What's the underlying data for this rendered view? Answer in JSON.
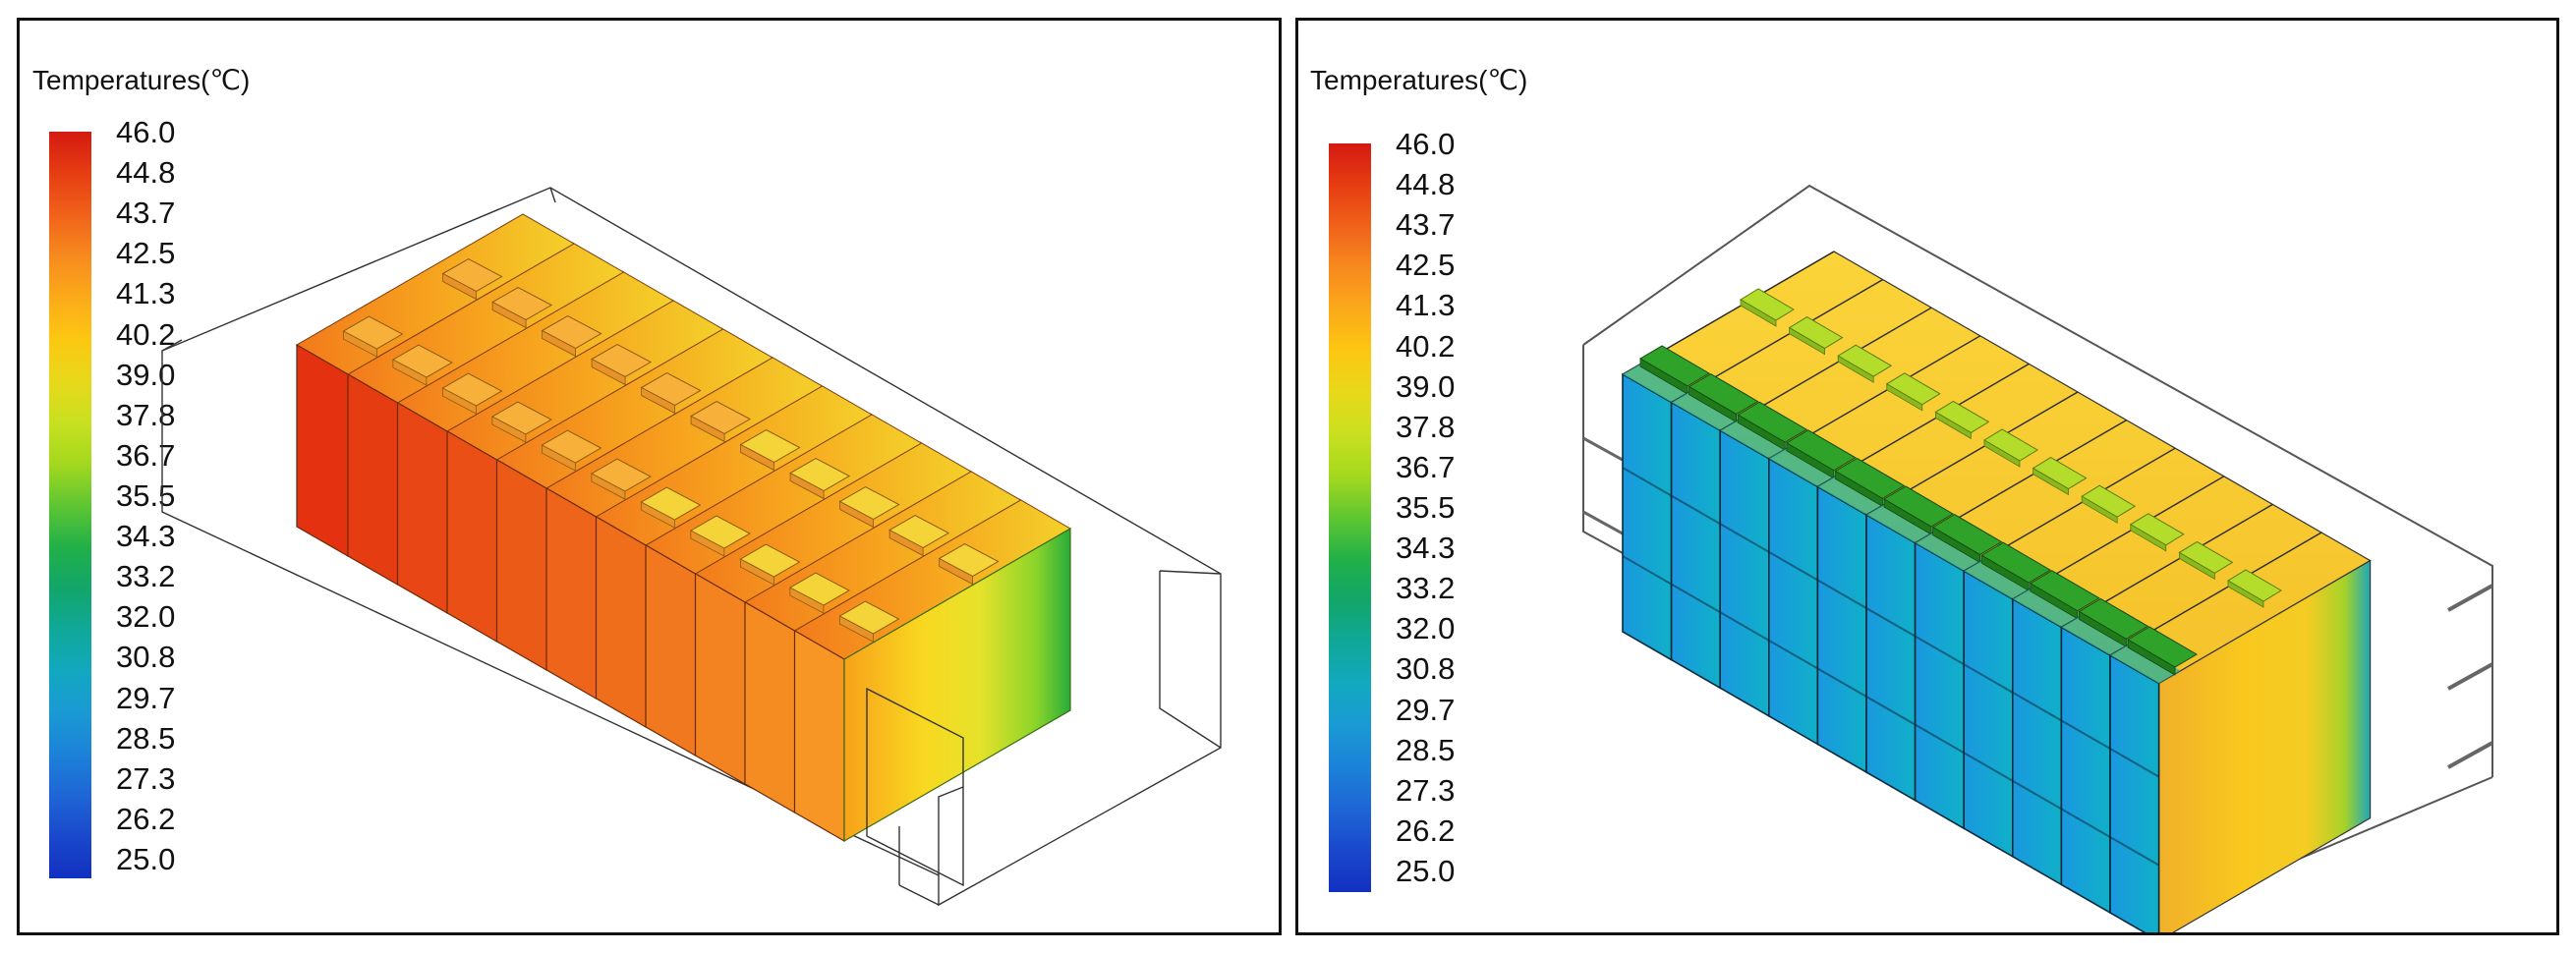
{
  "legend": {
    "title": "Temperatures(℃)",
    "ticks": [
      "46.0",
      "44.8",
      "43.7",
      "42.5",
      "41.3",
      "40.2",
      "39.0",
      "37.8",
      "36.7",
      "35.5",
      "34.3",
      "33.2",
      "32.0",
      "30.8",
      "29.7",
      "28.5",
      "27.3",
      "26.2",
      "25.0"
    ],
    "colormap": [
      "#d41a12",
      "#e63d12",
      "#f0621a",
      "#f78a1e",
      "#fbaa1a",
      "#fcc712",
      "#e8d81a",
      "#c8e020",
      "#a4d81e",
      "#5fc632",
      "#22b048",
      "#12a66a",
      "#10a898",
      "#12a8c0",
      "#1a9ad4",
      "#1c82d8",
      "#1e66d6",
      "#1a48cc",
      "#1230c0"
    ]
  },
  "panels": [
    {
      "id": "left",
      "module_colors": {
        "cell_front_hot": "#e0320e",
        "cell_front_warm": "#f58a1c",
        "cell_side_gradient": [
          "#fbb21e",
          "#f8e02a",
          "#d8e62a",
          "#7cd02a",
          "#2aae3a"
        ],
        "top_face": "#f4a020",
        "terminal": "#f9c63a"
      }
    },
    {
      "id": "right",
      "module_colors": {
        "cell_front": "#1aa8d6",
        "cell_side_gradient": [
          "#f7b52a",
          "#f8c820",
          "#e8d420",
          "#a8d228",
          "#2aae3a"
        ],
        "top_face": "#fcd23a",
        "terminal_cold": "#2ea62e",
        "terminal_warm": "#a8d628"
      }
    }
  ]
}
